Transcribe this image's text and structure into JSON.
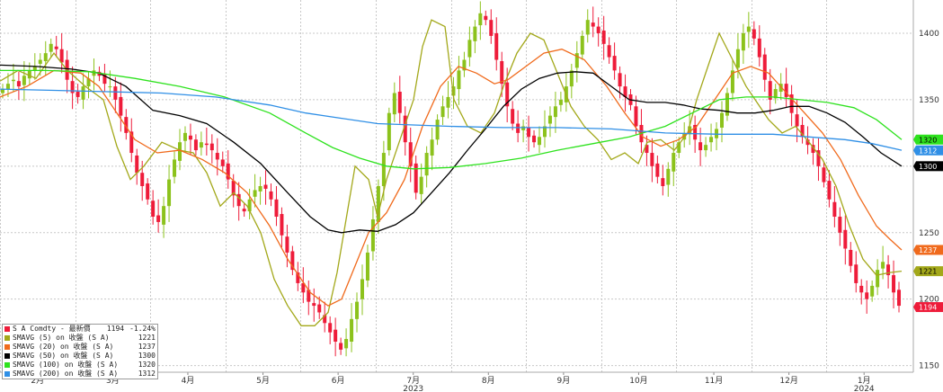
{
  "chart_data": {
    "type": "candlestick",
    "y_axis": {
      "position": "right",
      "ticks": [
        1150,
        1200,
        1250,
        1300,
        1350,
        1400
      ],
      "ylim": [
        1145,
        1425
      ]
    },
    "grid": true,
    "x_axis": {
      "months": [
        {
          "label": "2月",
          "year": ""
        },
        {
          "label": "3月",
          "year": ""
        },
        {
          "label": "4月",
          "year": ""
        },
        {
          "label": "5月",
          "year": ""
        },
        {
          "label": "6月",
          "year": ""
        },
        {
          "label": "7月",
          "year": "2023"
        },
        {
          "label": "8月",
          "year": ""
        },
        {
          "label": "9月",
          "year": ""
        },
        {
          "label": "10月",
          "year": ""
        },
        {
          "label": "11月",
          "year": ""
        },
        {
          "label": "12月",
          "year": ""
        },
        {
          "label": "1月",
          "year": "2024"
        }
      ]
    },
    "candle_colors": {
      "up": "#8cc21c",
      "down": "#ee1c3a"
    },
    "candles_approx_close": [
      1358,
      1362,
      1365,
      1360,
      1368,
      1372,
      1375,
      1380,
      1385,
      1392,
      1388,
      1378,
      1365,
      1355,
      1352,
      1360,
      1366,
      1372,
      1368,
      1362,
      1360,
      1350,
      1338,
      1325,
      1310,
      1295,
      1285,
      1275,
      1262,
      1258,
      1270,
      1290,
      1305,
      1318,
      1325,
      1320,
      1312,
      1318,
      1316,
      1312,
      1305,
      1300,
      1290,
      1278,
      1270,
      1266,
      1275,
      1282,
      1285,
      1283,
      1275,
      1262,
      1248,
      1235,
      1222,
      1212,
      1205,
      1198,
      1195,
      1190,
      1182,
      1175,
      1168,
      1162,
      1170,
      1185,
      1198,
      1215,
      1235,
      1260,
      1285,
      1310,
      1340,
      1355,
      1340,
      1318,
      1300,
      1280,
      1292,
      1310,
      1320,
      1335,
      1345,
      1352,
      1360,
      1372,
      1380,
      1395,
      1405,
      1415,
      1410,
      1398,
      1380,
      1362,
      1345,
      1332,
      1325,
      1330,
      1322,
      1318,
      1322,
      1330,
      1338,
      1345,
      1350,
      1360,
      1372,
      1385,
      1398,
      1410,
      1405,
      1400,
      1392,
      1382,
      1372,
      1360,
      1352,
      1346,
      1330,
      1318,
      1310,
      1300,
      1292,
      1285,
      1298,
      1310,
      1318,
      1325,
      1330,
      1320,
      1312,
      1316,
      1322,
      1328,
      1340,
      1355,
      1372,
      1388,
      1400,
      1405,
      1396,
      1382,
      1365,
      1350,
      1358,
      1362,
      1352,
      1340,
      1330,
      1322,
      1316,
      1310,
      1300,
      1288,
      1275,
      1262,
      1250,
      1238,
      1225,
      1212,
      1205,
      1200,
      1210,
      1222,
      1228,
      1218,
      1205,
      1195
    ],
    "series": [
      {
        "name": "S A Comdty - 最新價",
        "last_value": "1194",
        "change": "-1.24%",
        "color": "#ee1c3a",
        "tag_text": "1194"
      },
      {
        "name": "SMAVG (5)  on 收盤 (S A)",
        "last_value": "1221",
        "color": "#a3a81a",
        "tag_text": "1221",
        "points": [
          [
            0,
            1364
          ],
          [
            20,
            1372
          ],
          [
            40,
            1366
          ],
          [
            60,
            1385
          ],
          [
            75,
            1372
          ],
          [
            95,
            1360
          ],
          [
            115,
            1350
          ],
          [
            130,
            1315
          ],
          [
            145,
            1290
          ],
          [
            160,
            1300
          ],
          [
            180,
            1318
          ],
          [
            200,
            1312
          ],
          [
            215,
            1310
          ],
          [
            230,
            1295
          ],
          [
            245,
            1270
          ],
          [
            260,
            1280
          ],
          [
            275,
            1270
          ],
          [
            290,
            1250
          ],
          [
            305,
            1215
          ],
          [
            320,
            1195
          ],
          [
            335,
            1180
          ],
          [
            350,
            1180
          ],
          [
            365,
            1190
          ],
          [
            375,
            1220
          ],
          [
            385,
            1260
          ],
          [
            395,
            1300
          ],
          [
            410,
            1290
          ],
          [
            420,
            1262
          ],
          [
            430,
            1290
          ],
          [
            445,
            1320
          ],
          [
            460,
            1350
          ],
          [
            470,
            1390
          ],
          [
            480,
            1410
          ],
          [
            495,
            1405
          ],
          [
            505,
            1350
          ],
          [
            520,
            1330
          ],
          [
            535,
            1325
          ],
          [
            550,
            1340
          ],
          [
            560,
            1360
          ],
          [
            575,
            1385
          ],
          [
            590,
            1400
          ],
          [
            605,
            1395
          ],
          [
            620,
            1370
          ],
          [
            635,
            1345
          ],
          [
            650,
            1330
          ],
          [
            665,
            1320
          ],
          [
            680,
            1305
          ],
          [
            695,
            1310
          ],
          [
            710,
            1302
          ],
          [
            720,
            1318
          ],
          [
            735,
            1320
          ],
          [
            750,
            1312
          ],
          [
            765,
            1325
          ],
          [
            775,
            1350
          ],
          [
            790,
            1380
          ],
          [
            800,
            1400
          ],
          [
            815,
            1380
          ],
          [
            830,
            1360
          ],
          [
            845,
            1345
          ],
          [
            855,
            1335
          ],
          [
            870,
            1325
          ],
          [
            885,
            1330
          ],
          [
            900,
            1318
          ],
          [
            915,
            1305
          ],
          [
            930,
            1285
          ],
          [
            945,
            1255
          ],
          [
            960,
            1230
          ],
          [
            975,
            1218
          ],
          [
            990,
            1220
          ],
          [
            1003,
            1221
          ]
        ]
      },
      {
        "name": "SMAVG (20)  on 收盤 (S A)",
        "last_value": "1237",
        "color": "#f06a1c",
        "tag_text": "1237",
        "points": [
          [
            0,
            1352
          ],
          [
            30,
            1360
          ],
          [
            60,
            1372
          ],
          [
            90,
            1370
          ],
          [
            110,
            1360
          ],
          [
            130,
            1340
          ],
          [
            150,
            1320
          ],
          [
            175,
            1310
          ],
          [
            200,
            1312
          ],
          [
            225,
            1305
          ],
          [
            250,
            1295
          ],
          [
            275,
            1280
          ],
          [
            300,
            1255
          ],
          [
            320,
            1230
          ],
          [
            345,
            1205
          ],
          [
            365,
            1195
          ],
          [
            380,
            1200
          ],
          [
            395,
            1225
          ],
          [
            410,
            1250
          ],
          [
            430,
            1265
          ],
          [
            450,
            1290
          ],
          [
            470,
            1330
          ],
          [
            490,
            1360
          ],
          [
            510,
            1375
          ],
          [
            530,
            1370
          ],
          [
            550,
            1362
          ],
          [
            565,
            1365
          ],
          [
            585,
            1375
          ],
          [
            605,
            1385
          ],
          [
            625,
            1388
          ],
          [
            650,
            1380
          ],
          [
            675,
            1360
          ],
          [
            695,
            1340
          ],
          [
            715,
            1322
          ],
          [
            735,
            1315
          ],
          [
            755,
            1320
          ],
          [
            775,
            1330
          ],
          [
            795,
            1350
          ],
          [
            815,
            1370
          ],
          [
            835,
            1375
          ],
          [
            855,
            1370
          ],
          [
            875,
            1355
          ],
          [
            895,
            1340
          ],
          [
            915,
            1325
          ],
          [
            935,
            1305
          ],
          [
            955,
            1278
          ],
          [
            975,
            1255
          ],
          [
            990,
            1245
          ],
          [
            1003,
            1237
          ]
        ]
      },
      {
        "name": "SMAVG (50)  on 收盤 (S A)",
        "last_value": "1300",
        "color": "#000000",
        "tag_text": "1300",
        "points": [
          [
            0,
            1376
          ],
          [
            40,
            1375
          ],
          [
            80,
            1373
          ],
          [
            110,
            1370
          ],
          [
            140,
            1360
          ],
          [
            170,
            1342
          ],
          [
            200,
            1338
          ],
          [
            230,
            1332
          ],
          [
            260,
            1318
          ],
          [
            290,
            1302
          ],
          [
            320,
            1280
          ],
          [
            345,
            1262
          ],
          [
            365,
            1252
          ],
          [
            380,
            1250
          ],
          [
            400,
            1252
          ],
          [
            420,
            1251
          ],
          [
            440,
            1256
          ],
          [
            460,
            1265
          ],
          [
            480,
            1280
          ],
          [
            500,
            1295
          ],
          [
            520,
            1312
          ],
          [
            540,
            1328
          ],
          [
            560,
            1345
          ],
          [
            580,
            1358
          ],
          [
            600,
            1366
          ],
          [
            620,
            1370
          ],
          [
            640,
            1371
          ],
          [
            660,
            1370
          ],
          [
            680,
            1360
          ],
          [
            700,
            1350
          ],
          [
            720,
            1348
          ],
          [
            740,
            1348
          ],
          [
            760,
            1346
          ],
          [
            780,
            1343
          ],
          [
            800,
            1342
          ],
          [
            820,
            1340
          ],
          [
            840,
            1340
          ],
          [
            860,
            1342
          ],
          [
            880,
            1345
          ],
          [
            900,
            1345
          ],
          [
            920,
            1340
          ],
          [
            940,
            1333
          ],
          [
            960,
            1322
          ],
          [
            980,
            1310
          ],
          [
            1003,
            1300
          ]
        ]
      },
      {
        "name": "SMAVG (100)  on 收盤 (S A)",
        "last_value": "1320",
        "color": "#2ee21e",
        "tag_text": "1320",
        "points": [
          [
            0,
            1372
          ],
          [
            50,
            1372
          ],
          [
            100,
            1371
          ],
          [
            150,
            1366
          ],
          [
            200,
            1360
          ],
          [
            250,
            1352
          ],
          [
            300,
            1340
          ],
          [
            340,
            1325
          ],
          [
            370,
            1314
          ],
          [
            400,
            1306
          ],
          [
            430,
            1300
          ],
          [
            460,
            1298
          ],
          [
            500,
            1299
          ],
          [
            540,
            1302
          ],
          [
            580,
            1306
          ],
          [
            620,
            1312
          ],
          [
            660,
            1317
          ],
          [
            700,
            1322
          ],
          [
            740,
            1330
          ],
          [
            770,
            1340
          ],
          [
            800,
            1350
          ],
          [
            830,
            1352
          ],
          [
            860,
            1352
          ],
          [
            890,
            1350
          ],
          [
            920,
            1348
          ],
          [
            950,
            1344
          ],
          [
            975,
            1335
          ],
          [
            1003,
            1320
          ]
        ]
      },
      {
        "name": "SMAVG (200)  on 收盤 (S A)",
        "last_value": "1312",
        "color": "#2f8fe6",
        "tag_text": "1312",
        "points": [
          [
            0,
            1358
          ],
          [
            60,
            1357
          ],
          [
            120,
            1356
          ],
          [
            180,
            1355
          ],
          [
            240,
            1352
          ],
          [
            300,
            1346
          ],
          [
            340,
            1340
          ],
          [
            380,
            1336
          ],
          [
            420,
            1332
          ],
          [
            460,
            1331
          ],
          [
            500,
            1330
          ],
          [
            560,
            1329
          ],
          [
            620,
            1329
          ],
          [
            680,
            1328
          ],
          [
            740,
            1325
          ],
          [
            800,
            1324
          ],
          [
            860,
            1324
          ],
          [
            900,
            1322
          ],
          [
            940,
            1320
          ],
          [
            970,
            1317
          ],
          [
            1003,
            1312
          ]
        ]
      }
    ]
  }
}
